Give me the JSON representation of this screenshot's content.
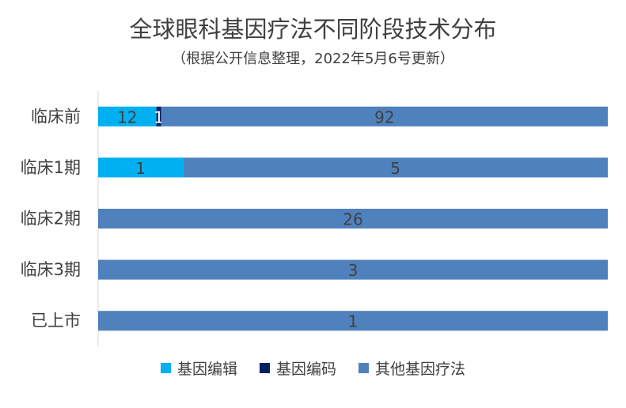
{
  "chart_data": {
    "type": "bar",
    "orientation": "horizontal",
    "stacked": "100%",
    "title": "全球眼科基因疗法不同阶段技术分布",
    "subtitle": "（根据公开信息整理，2022年5月6号更新）",
    "categories": [
      "临床前",
      "临床1期",
      "临床2期",
      "临床3期",
      "已上市"
    ],
    "series": [
      {
        "name": "基因编辑",
        "color": "#00B0F0",
        "values": [
          12,
          1,
          0,
          0,
          0
        ]
      },
      {
        "name": "基因编码",
        "color": "#002060",
        "values": [
          1,
          0,
          0,
          0,
          0
        ]
      },
      {
        "name": "其他基因疗法",
        "color": "#4F81BD",
        "values": [
          92,
          5,
          26,
          3,
          1
        ]
      }
    ],
    "legend_position": "bottom",
    "grid": false
  }
}
